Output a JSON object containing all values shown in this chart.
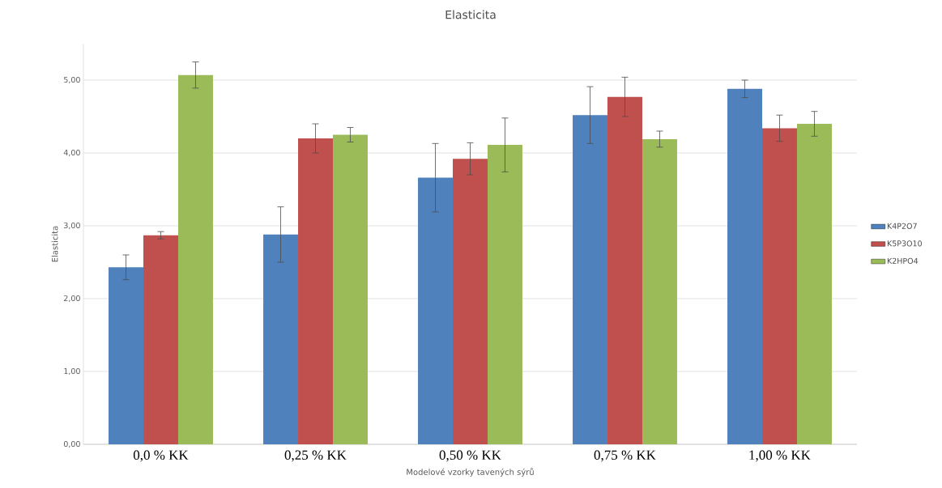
{
  "chart_data": {
    "type": "bar",
    "title": "Elasticita",
    "xlabel": "Modelové vzorky tavených sýrů",
    "ylabel": "Elasticita",
    "categories": [
      "0,0 % KK",
      "0,25 % KK",
      "0,50 % KK",
      "0,75 % KK",
      "1,00 % KK"
    ],
    "series": [
      {
        "name": "K4P2O7",
        "color": "#4f81bd",
        "values": [
          2.43,
          2.88,
          3.66,
          4.52,
          4.88
        ],
        "errors": [
          0.17,
          0.38,
          0.47,
          0.39,
          0.12
        ]
      },
      {
        "name": "K5P3O10",
        "color": "#c0504d",
        "values": [
          2.87,
          4.2,
          3.92,
          4.77,
          4.34
        ],
        "errors": [
          0.05,
          0.2,
          0.22,
          0.27,
          0.18
        ]
      },
      {
        "name": "K2HPO4",
        "color": "#9bbb59",
        "values": [
          5.07,
          4.25,
          4.11,
          4.19,
          4.4
        ],
        "errors": [
          0.18,
          0.1,
          0.37,
          0.11,
          0.17
        ]
      }
    ],
    "ylim": [
      0,
      5.5
    ],
    "yticks": [
      {
        "value": 0,
        "label": "0,00"
      },
      {
        "value": 1,
        "label": "1,00"
      },
      {
        "value": 2,
        "label": "2,00"
      },
      {
        "value": 3,
        "label": "3,00"
      },
      {
        "value": 4,
        "label": "4,00"
      },
      {
        "value": 5,
        "label": "5,00"
      }
    ],
    "grid": "y",
    "legend": "right"
  }
}
